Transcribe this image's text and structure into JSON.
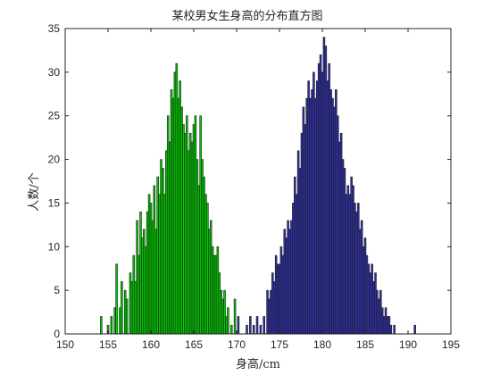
{
  "chart_data": {
    "type": "bar",
    "title": "某校男女生身高的分布直方图",
    "xlabel": "身高/cm",
    "ylabel": "人数/个",
    "xlim": [
      150,
      195
    ],
    "ylim": [
      0,
      35
    ],
    "xticks": [
      "150",
      "155",
      "160",
      "165",
      "170",
      "175",
      "180",
      "185",
      "190",
      "195"
    ],
    "yticks": [
      "0",
      "5",
      "10",
      "15",
      "20",
      "25",
      "30",
      "35"
    ],
    "grid": false,
    "legend": "none",
    "bin_width": 0.2,
    "series": [
      {
        "color": "#00cc00",
        "edge_color": "#1a1a1a",
        "points": [
          [
            154.2,
            2
          ],
          [
            155.0,
            1
          ],
          [
            155.4,
            2
          ],
          [
            155.8,
            3
          ],
          [
            156.0,
            8
          ],
          [
            156.4,
            3
          ],
          [
            156.6,
            6
          ],
          [
            157.0,
            5
          ],
          [
            157.2,
            4
          ],
          [
            157.6,
            7
          ],
          [
            157.8,
            6
          ],
          [
            158.0,
            9
          ],
          [
            158.2,
            6
          ],
          [
            158.4,
            13
          ],
          [
            158.6,
            9
          ],
          [
            158.8,
            14
          ],
          [
            159.0,
            11
          ],
          [
            159.2,
            12
          ],
          [
            159.4,
            10
          ],
          [
            159.6,
            14
          ],
          [
            159.8,
            16
          ],
          [
            160.0,
            15
          ],
          [
            160.2,
            13
          ],
          [
            160.4,
            17
          ],
          [
            160.6,
            12
          ],
          [
            160.8,
            18
          ],
          [
            161.0,
            16
          ],
          [
            161.2,
            20
          ],
          [
            161.4,
            19
          ],
          [
            161.6,
            16
          ],
          [
            161.8,
            21
          ],
          [
            162.0,
            25
          ],
          [
            162.2,
            22
          ],
          [
            162.4,
            28
          ],
          [
            162.6,
            27
          ],
          [
            162.8,
            30
          ],
          [
            163.0,
            31
          ],
          [
            163.2,
            27
          ],
          [
            163.4,
            29
          ],
          [
            163.6,
            26
          ],
          [
            163.8,
            24
          ],
          [
            164.0,
            23
          ],
          [
            164.2,
            25
          ],
          [
            164.4,
            21
          ],
          [
            164.6,
            23
          ],
          [
            164.8,
            22
          ],
          [
            165.0,
            24
          ],
          [
            165.2,
            25
          ],
          [
            165.4,
            20
          ],
          [
            165.6,
            17
          ],
          [
            165.8,
            25
          ],
          [
            166.0,
            20
          ],
          [
            166.2,
            18
          ],
          [
            166.4,
            16
          ],
          [
            166.6,
            15
          ],
          [
            166.8,
            12
          ],
          [
            167.0,
            13
          ],
          [
            167.2,
            10
          ],
          [
            167.4,
            9
          ],
          [
            167.6,
            9
          ],
          [
            167.8,
            10
          ],
          [
            168.0,
            7
          ],
          [
            168.2,
            5
          ],
          [
            168.4,
            4
          ],
          [
            168.6,
            5
          ],
          [
            168.8,
            2
          ],
          [
            169.0,
            3
          ],
          [
            169.4,
            1
          ],
          [
            169.8,
            4
          ]
        ]
      },
      {
        "color": "#3030a8",
        "edge_color": "#1a1a1a",
        "points": [
          [
            170.2,
            2
          ],
          [
            171.2,
            1
          ],
          [
            171.6,
            2
          ],
          [
            172.0,
            1
          ],
          [
            172.4,
            2
          ],
          [
            172.8,
            1
          ],
          [
            173.2,
            2
          ],
          [
            173.6,
            5
          ],
          [
            173.8,
            4
          ],
          [
            174.0,
            5
          ],
          [
            174.2,
            7
          ],
          [
            174.4,
            6
          ],
          [
            174.6,
            9
          ],
          [
            174.8,
            8
          ],
          [
            175.0,
            8
          ],
          [
            175.2,
            10
          ],
          [
            175.4,
            9
          ],
          [
            175.6,
            12
          ],
          [
            175.8,
            11
          ],
          [
            176.0,
            13
          ],
          [
            176.2,
            12
          ],
          [
            176.4,
            13
          ],
          [
            176.6,
            15
          ],
          [
            176.8,
            18
          ],
          [
            177.0,
            16
          ],
          [
            177.2,
            21
          ],
          [
            177.4,
            19
          ],
          [
            177.6,
            23
          ],
          [
            177.8,
            26
          ],
          [
            178.0,
            24
          ],
          [
            178.2,
            27
          ],
          [
            178.4,
            29
          ],
          [
            178.6,
            27
          ],
          [
            178.8,
            28
          ],
          [
            179.0,
            30
          ],
          [
            179.2,
            27
          ],
          [
            179.4,
            29
          ],
          [
            179.6,
            31
          ],
          [
            179.8,
            32
          ],
          [
            180.0,
            30
          ],
          [
            180.2,
            34
          ],
          [
            180.4,
            33
          ],
          [
            180.6,
            29
          ],
          [
            180.8,
            31
          ],
          [
            181.0,
            28
          ],
          [
            181.2,
            27
          ],
          [
            181.4,
            26
          ],
          [
            181.6,
            28
          ],
          [
            181.8,
            25
          ],
          [
            182.0,
            22
          ],
          [
            182.2,
            23
          ],
          [
            182.4,
            20
          ],
          [
            182.6,
            19
          ],
          [
            182.8,
            16
          ],
          [
            183.0,
            17
          ],
          [
            183.2,
            16
          ],
          [
            183.4,
            18
          ],
          [
            183.6,
            17
          ],
          [
            183.8,
            15
          ],
          [
            184.0,
            14
          ],
          [
            184.2,
            15
          ],
          [
            184.4,
            12
          ],
          [
            184.6,
            13
          ],
          [
            184.8,
            10
          ],
          [
            185.0,
            11
          ],
          [
            185.2,
            9
          ],
          [
            185.4,
            8
          ],
          [
            185.6,
            7
          ],
          [
            185.8,
            8
          ],
          [
            186.0,
            6
          ],
          [
            186.2,
            7
          ],
          [
            186.4,
            5
          ],
          [
            186.6,
            4
          ],
          [
            186.8,
            5
          ],
          [
            187.0,
            3
          ],
          [
            187.2,
            2
          ],
          [
            187.4,
            3
          ],
          [
            187.6,
            2
          ],
          [
            187.8,
            2
          ],
          [
            188.0,
            1
          ],
          [
            188.4,
            1
          ],
          [
            190.8,
            1
          ]
        ]
      }
    ]
  }
}
